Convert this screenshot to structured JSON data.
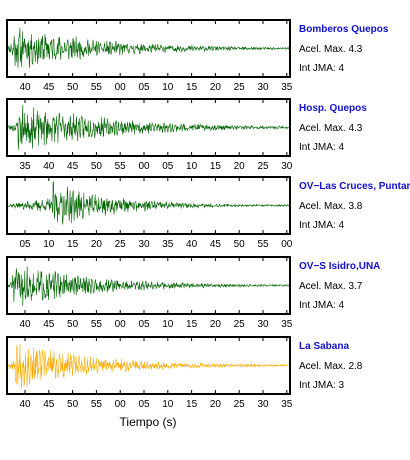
{
  "chart_data": {
    "type": "line",
    "xlabel": "Tiempo (s)",
    "colors": {
      "dark": "#006400",
      "light": "#ffaa00",
      "name": "#1010d0"
    },
    "panels": [
      {
        "station": "Bomberos Quepos",
        "acel_label": "Acel. Max. 4.3",
        "int_label": "Int JMA: 4",
        "color": "#006400",
        "ticks": [
          "40",
          "45",
          "50",
          "55",
          "00",
          "05",
          "10",
          "15",
          "20",
          "25",
          "30",
          "35"
        ],
        "amplitude": 0.9,
        "onset": 0.02,
        "decay": 3.2,
        "seed": 11
      },
      {
        "station": "Hosp. Quepos",
        "acel_label": "Acel. Max. 4.3",
        "int_label": "Int JMA: 4",
        "color": "#006400",
        "ticks": [
          "35",
          "40",
          "45",
          "50",
          "55",
          "00",
          "05",
          "10",
          "15",
          "20",
          "25",
          "30"
        ],
        "amplitude": 0.95,
        "onset": 0.04,
        "decay": 3.0,
        "seed": 23
      },
      {
        "station": "OV−Las Cruces, Puntar",
        "acel_label": "Acel. Max. 3.8",
        "int_label": "Int JMA: 4",
        "color": "#006400",
        "ticks": [
          "05",
          "10",
          "15",
          "20",
          "25",
          "30",
          "35",
          "40",
          "45",
          "50",
          "55",
          "00"
        ],
        "amplitude": 0.95,
        "onset": 0.16,
        "decay": 4.5,
        "seed": 37
      },
      {
        "station": "OV−S Isidro,UNA",
        "acel_label": "Acel. Max. 3.7",
        "int_label": "Int JMA: 4",
        "color": "#006400",
        "ticks": [
          "40",
          "45",
          "50",
          "55",
          "00",
          "05",
          "10",
          "15",
          "20",
          "25",
          "30",
          "35"
        ],
        "amplitude": 0.9,
        "onset": 0.02,
        "decay": 3.4,
        "seed": 51
      },
      {
        "station": "La Sabana",
        "acel_label": "Acel. Max. 2.8",
        "int_label": "Int JMA: 3",
        "color": "#ffaa00",
        "ticks": [
          "40",
          "45",
          "50",
          "55",
          "00",
          "05",
          "10",
          "15",
          "20",
          "25",
          "30",
          "35"
        ],
        "amplitude": 0.95,
        "onset": 0.03,
        "decay": 3.6,
        "seed": 67
      }
    ]
  }
}
